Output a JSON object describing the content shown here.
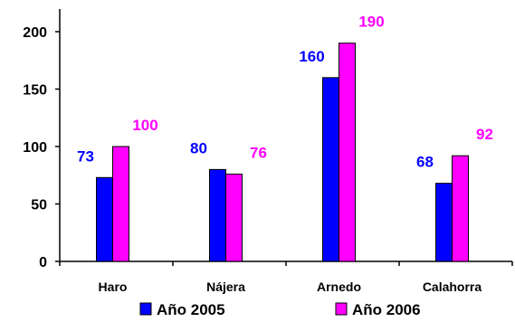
{
  "chart_data": {
    "type": "bar",
    "title": "",
    "xlabel": "",
    "ylabel": "",
    "ylim": [
      0,
      200
    ],
    "yticks": [
      0,
      50,
      100,
      150,
      200
    ],
    "categories": [
      "Haro",
      "Nájera",
      "Arnedo",
      "Calahorra"
    ],
    "series": [
      {
        "name": "Año 2005",
        "color": "#0000ff",
        "values": [
          73,
          80,
          160,
          68
        ]
      },
      {
        "name": "Año 2006",
        "color": "#ff00ff",
        "values": [
          100,
          76,
          190,
          92
        ]
      }
    ],
    "grid": false,
    "legend_position": "bottom"
  }
}
